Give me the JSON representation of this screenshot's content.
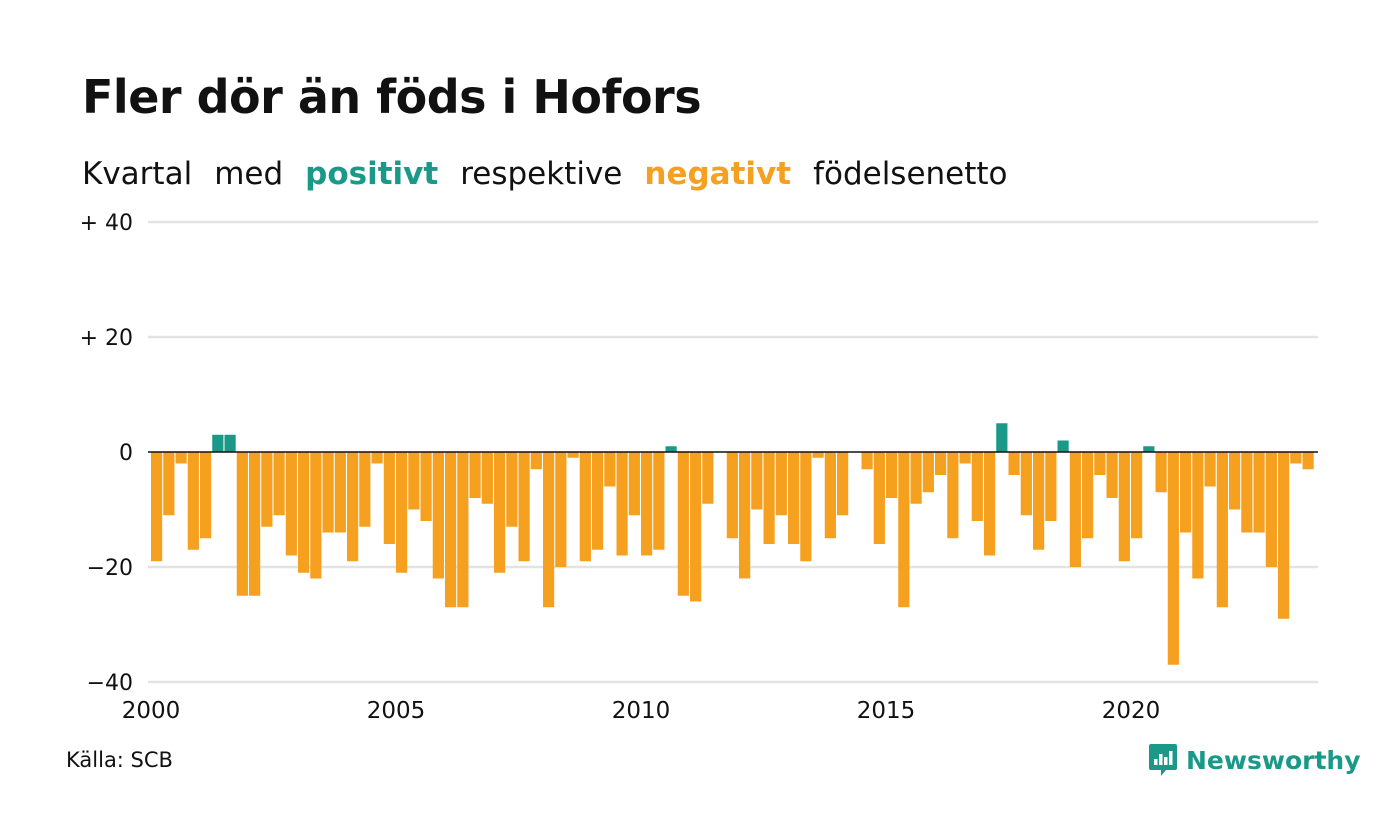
{
  "header": {
    "title": "Fler dör än föds i Hofors",
    "subtitle_words": [
      "Kvartal",
      "med"
    ],
    "subtitle_positive": "positivt",
    "subtitle_middle": "respektive",
    "subtitle_negative": "negativt",
    "subtitle_end": "födelsenetto"
  },
  "footer": {
    "source": "Källa: SCB",
    "brand": "Newsworthy",
    "brand_icon": "newsworthy-logo-icon"
  },
  "colors": {
    "positive": "#1a9988",
    "negative": "#f5a01e",
    "grid": "#e3e3e3",
    "zero_line": "#111111"
  },
  "chart_data": {
    "type": "bar",
    "title": "Fler dör än föds i Hofors",
    "subtitle": "Kvartal med positivt respektive negativt födelsenetto",
    "xlabel": "",
    "ylabel": "",
    "x_start_year": 2000,
    "periods_per_year": 4,
    "ylim": [
      -40,
      40
    ],
    "yticks": [
      40,
      20,
      0,
      -20,
      -40
    ],
    "ytick_labels": [
      "+ 40",
      "+ 20",
      "0",
      "−20",
      "−40"
    ],
    "xticks": [
      "2000",
      "2005",
      "2010",
      "2015",
      "2020"
    ],
    "grid": true,
    "legend": "none",
    "values": [
      -19,
      -11,
      -2,
      -17,
      -15,
      3,
      3,
      -25,
      -25,
      -13,
      -11,
      -18,
      -21,
      -22,
      -14,
      -14,
      -19,
      -13,
      -2,
      -16,
      -21,
      -10,
      -12,
      -22,
      -27,
      -27,
      -8,
      -9,
      -21,
      -13,
      -19,
      -3,
      -27,
      -20,
      -1,
      -19,
      -17,
      -6,
      -18,
      -11,
      -18,
      -17,
      1,
      -25,
      -26,
      -9,
      0,
      -15,
      -22,
      -10,
      -16,
      -11,
      -16,
      -19,
      -1,
      -15,
      -11,
      0,
      -3,
      -16,
      -8,
      -27,
      -9,
      -7,
      -4,
      -15,
      -2,
      -12,
      -18,
      5,
      -4,
      -11,
      -17,
      -12,
      2,
      -20,
      -15,
      -4,
      -8,
      -19,
      -15,
      1,
      -7,
      -37,
      -14,
      -22,
      -6,
      -27,
      -10,
      -14,
      -14,
      -20,
      -29,
      -2,
      -3
    ]
  }
}
